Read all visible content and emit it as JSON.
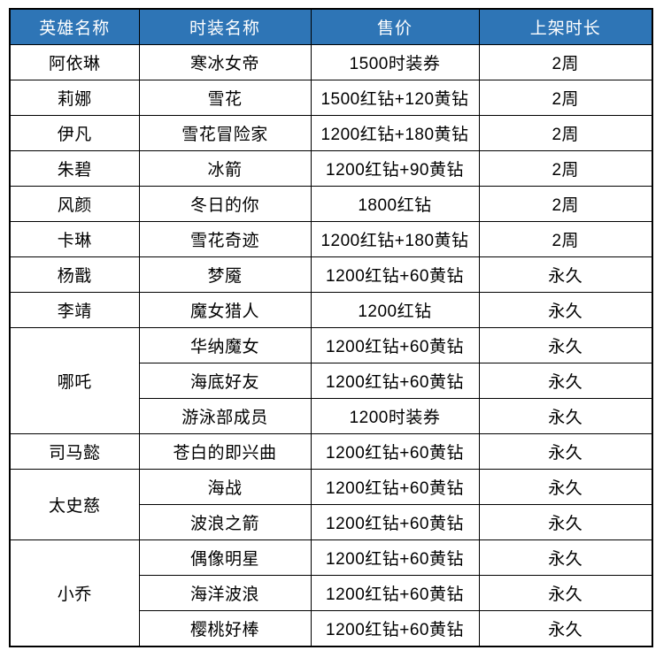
{
  "table": {
    "headers": [
      "英雄名称",
      "时装名称",
      "售价",
      "上架时长"
    ],
    "rows": [
      {
        "hero": {
          "name": "阿依琳",
          "rowspan": 1
        },
        "skin": "寒冰女帝",
        "price": "1500时装券",
        "duration": "2周"
      },
      {
        "hero": {
          "name": "莉娜",
          "rowspan": 1
        },
        "skin": "雪花",
        "price": "1500红钻+120黄钻",
        "duration": "2周"
      },
      {
        "hero": {
          "name": "伊凡",
          "rowspan": 1
        },
        "skin": "雪花冒险家",
        "price": "1200红钻+180黄钻",
        "duration": "2周"
      },
      {
        "hero": {
          "name": "朱碧",
          "rowspan": 1
        },
        "skin": "冰箭",
        "price": "1200红钻+90黄钻",
        "duration": "2周"
      },
      {
        "hero": {
          "name": "风颜",
          "rowspan": 1
        },
        "skin": "冬日的你",
        "price": "1800红钻",
        "duration": "2周"
      },
      {
        "hero": {
          "name": "卡琳",
          "rowspan": 1
        },
        "skin": "雪花奇迹",
        "price": "1200红钻+180黄钻",
        "duration": "2周"
      },
      {
        "hero": {
          "name": "杨戬",
          "rowspan": 1
        },
        "skin": "梦魇",
        "price": "1200红钻+60黄钻",
        "duration": "永久"
      },
      {
        "hero": {
          "name": "李靖",
          "rowspan": 1
        },
        "skin": "魔女猎人",
        "price": "1200红钻",
        "duration": "永久"
      },
      {
        "hero": {
          "name": "哪吒",
          "rowspan": 3
        },
        "skin": "华纳魔女",
        "price": "1200红钻+60黄钻",
        "duration": "永久"
      },
      {
        "hero": null,
        "skin": "海底好友",
        "price": "1200红钻+60黄钻",
        "duration": "永久"
      },
      {
        "hero": null,
        "skin": "游泳部成员",
        "price": "1200时装券",
        "duration": "永久"
      },
      {
        "hero": {
          "name": "司马懿",
          "rowspan": 1
        },
        "skin": "苍白的即兴曲",
        "price": "1200红钻+60黄钻",
        "duration": "永久"
      },
      {
        "hero": {
          "name": "太史慈",
          "rowspan": 2
        },
        "skin": "海战",
        "price": "1200红钻+60黄钻",
        "duration": "永久"
      },
      {
        "hero": null,
        "skin": "波浪之箭",
        "price": "1200红钻+60黄钻",
        "duration": "永久"
      },
      {
        "hero": {
          "name": "小乔",
          "rowspan": 3
        },
        "skin": "偶像明星",
        "price": "1200红钻+60黄钻",
        "duration": "永久"
      },
      {
        "hero": null,
        "skin": "海洋波浪",
        "price": "1200红钻+60黄钻",
        "duration": "永久"
      },
      {
        "hero": null,
        "skin": "樱桃好棒",
        "price": "1200红钻+60黄钻",
        "duration": "永久"
      }
    ],
    "colors": {
      "header_bg": "#2E75B6",
      "header_text": "#FFFFFF",
      "body_text": "#000000",
      "border": "#000000",
      "row_bg": "#FFFFFF"
    }
  }
}
